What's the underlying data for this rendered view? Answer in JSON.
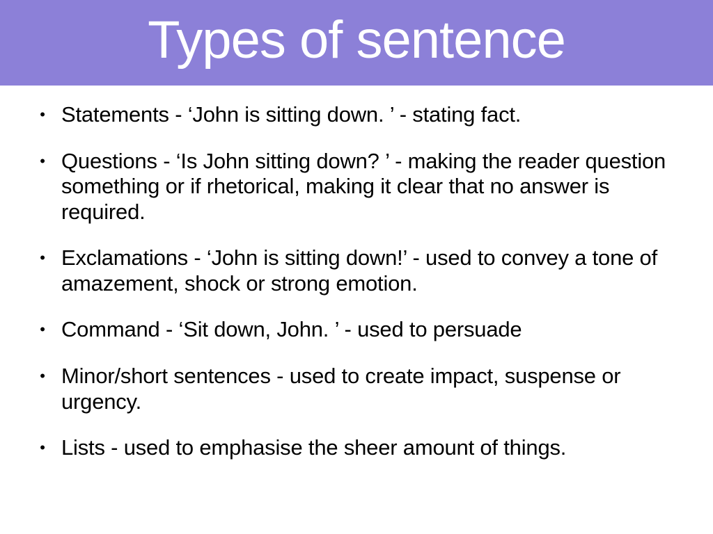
{
  "header": {
    "title": "Types of sentence",
    "background_color": "#8c80d8",
    "title_color": "#ffffff",
    "title_fontsize": 76
  },
  "content": {
    "background_color": "#ffffff",
    "text_color": "#000000",
    "bullet_glyph": "•",
    "item_fontsize": 31,
    "items": [
      {
        "text": "Statements - ‘John is sitting down. ’ - stating fact."
      },
      {
        "text": "Questions - ‘Is John sitting down? ’ - making the reader question something or if rhetorical, making it clear that no answer is required."
      },
      {
        "text": "Exclamations - ‘John is sitting down!’ - used to convey a tone of amazement, shock or strong emotion."
      },
      {
        "text": "Command - ‘Sit down, John. ’ -  used to persuade"
      },
      {
        "text": "Minor/short sentences - used to create impact, suspense or urgency."
      },
      {
        "text": "Lists - used to emphasise the sheer amount of things."
      }
    ]
  }
}
